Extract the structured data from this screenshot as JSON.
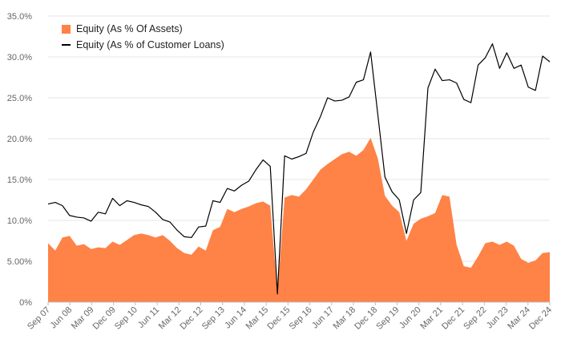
{
  "chart_data": {
    "type": "area",
    "title": "",
    "xlabel": "",
    "ylabel": "",
    "ylim": [
      0,
      35
    ],
    "yticks": [
      "0%",
      "5.00%",
      "10.0%",
      "15.0%",
      "20.0%",
      "25.0%",
      "30.0%",
      "35.0%"
    ],
    "ytick_values": [
      0,
      5,
      10,
      15,
      20,
      25,
      30,
      35
    ],
    "grid": true,
    "legend_position": "top-left",
    "colors": {
      "area": "#ff8246",
      "line": "#000000",
      "grid": "#e4e4e4",
      "tick": "#666666"
    },
    "x_labels": [
      "Sep 07",
      "Jun 08",
      "Mar 09",
      "Dec 09",
      "Sep 10",
      "Jun 11",
      "Mar 12",
      "Dec 12",
      "Sep 13",
      "Jun 14",
      "Mar 15",
      "Dec 15",
      "Sep 16",
      "Jun 17",
      "Mar 18",
      "Dec 18",
      "Sep 19",
      "Jun 20",
      "Mar 21",
      "Dec 21",
      "Sep 22",
      "Jun 23",
      "Mar 24",
      "Dec 24"
    ],
    "series": [
      {
        "name": "Equity (As % Of Assets)",
        "kind": "area",
        "values": [
          7.2,
          6.3,
          7.9,
          8.1,
          6.9,
          7.1,
          6.5,
          6.7,
          6.6,
          7.4,
          7.0,
          7.6,
          8.2,
          8.4,
          8.2,
          7.9,
          8.2,
          7.5,
          6.6,
          6.0,
          5.8,
          6.8,
          6.3,
          8.8,
          9.2,
          11.4,
          11.0,
          11.4,
          11.7,
          12.1,
          12.3,
          11.8,
          1.0,
          12.8,
          13.1,
          12.9,
          13.8,
          15.0,
          16.2,
          16.9,
          17.5,
          18.1,
          18.4,
          17.9,
          18.6,
          20.1,
          17.6,
          13.0,
          11.8,
          11.0,
          7.5,
          9.6,
          10.2,
          10.5,
          10.9,
          13.1,
          12.9,
          7.0,
          4.4,
          4.2,
          5.6,
          7.2,
          7.4,
          7.0,
          7.4,
          6.9,
          5.3,
          4.8,
          5.1,
          6.0,
          6.1
        ],
        "label_in_legend": "Equity (As % Of Assets)"
      },
      {
        "name": "Equity (As % of Customer Loans)",
        "kind": "line",
        "values": [
          12.0,
          12.2,
          11.8,
          10.6,
          10.4,
          10.3,
          9.9,
          11.0,
          10.8,
          12.7,
          11.8,
          12.4,
          12.2,
          11.9,
          11.7,
          11.0,
          10.1,
          9.8,
          8.8,
          8.0,
          7.9,
          9.2,
          9.3,
          12.4,
          12.2,
          13.9,
          13.6,
          14.3,
          14.8,
          16.2,
          17.4,
          16.6,
          1.0,
          17.9,
          17.5,
          17.8,
          18.2,
          20.8,
          22.7,
          25.0,
          24.6,
          24.7,
          25.1,
          26.9,
          27.2,
          30.6,
          23.0,
          15.3,
          13.5,
          12.5,
          8.4,
          12.5,
          13.4,
          26.2,
          28.5,
          27.1,
          27.2,
          26.8,
          24.8,
          24.4,
          29.0,
          29.9,
          31.6,
          28.6,
          30.5,
          28.6,
          29.0,
          26.3,
          25.9,
          30.1,
          29.4
        ],
        "label_in_legend": "Equity (As % of Customer Loans)"
      }
    ]
  }
}
